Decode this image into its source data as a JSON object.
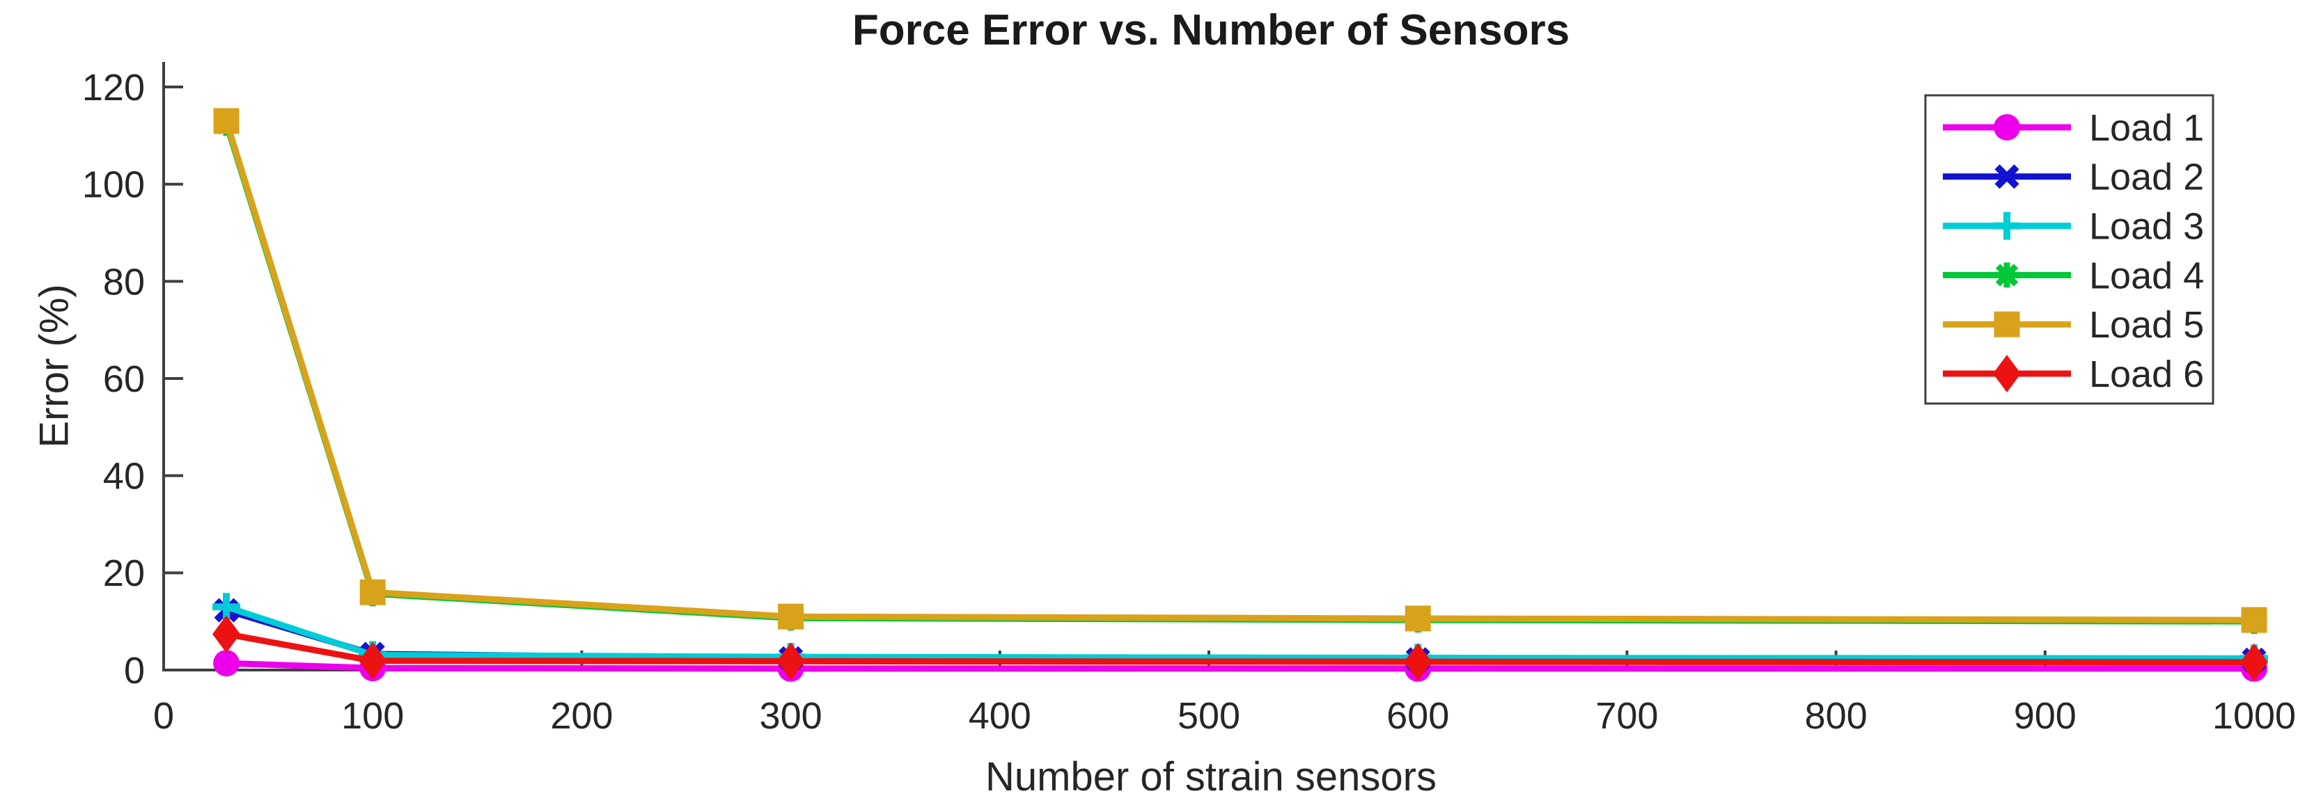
{
  "chart_data": {
    "type": "line",
    "title": "Force Error vs. Number of Sensors",
    "xlabel": "Number of strain sensors",
    "ylabel": "Error (%)",
    "x": [
      30,
      100,
      300,
      600,
      1000
    ],
    "series": [
      {
        "name": "Load 1",
        "color": "#EC00EC",
        "marker": "circle",
        "values": [
          1.4,
          0.4,
          0.3,
          0.3,
          0.3
        ]
      },
      {
        "name": "Load 2",
        "color": "#1212D0",
        "marker": "x",
        "values": [
          12.3,
          3.3,
          2.4,
          2.2,
          2.1
        ]
      },
      {
        "name": "Load 3",
        "color": "#00CCD5",
        "marker": "plus",
        "values": [
          13.0,
          3.1,
          2.7,
          2.5,
          2.4
        ]
      },
      {
        "name": "Load 4",
        "color": "#00C838",
        "marker": "asterisk",
        "values": [
          112.5,
          15.7,
          10.7,
          10.3,
          10.0
        ]
      },
      {
        "name": "Load 5",
        "color": "#D9A21B",
        "marker": "square",
        "values": [
          113.0,
          16.0,
          11.0,
          10.6,
          10.3
        ]
      },
      {
        "name": "Load 6",
        "color": "#EC1212",
        "marker": "diamond",
        "values": [
          7.4,
          1.9,
          1.8,
          1.7,
          1.6
        ]
      }
    ],
    "x_ticks": [
      0,
      100,
      200,
      300,
      400,
      500,
      600,
      700,
      800,
      900,
      1000
    ],
    "y_ticks": [
      0,
      20,
      40,
      60,
      80,
      100,
      120
    ],
    "xlim": [
      0,
      1000
    ],
    "ylim": [
      0,
      125
    ],
    "grid": false,
    "legend_position": "top-right",
    "axis_color": "#3F3F3F",
    "text_color": "#262626",
    "background": "#FFFFFF"
  }
}
